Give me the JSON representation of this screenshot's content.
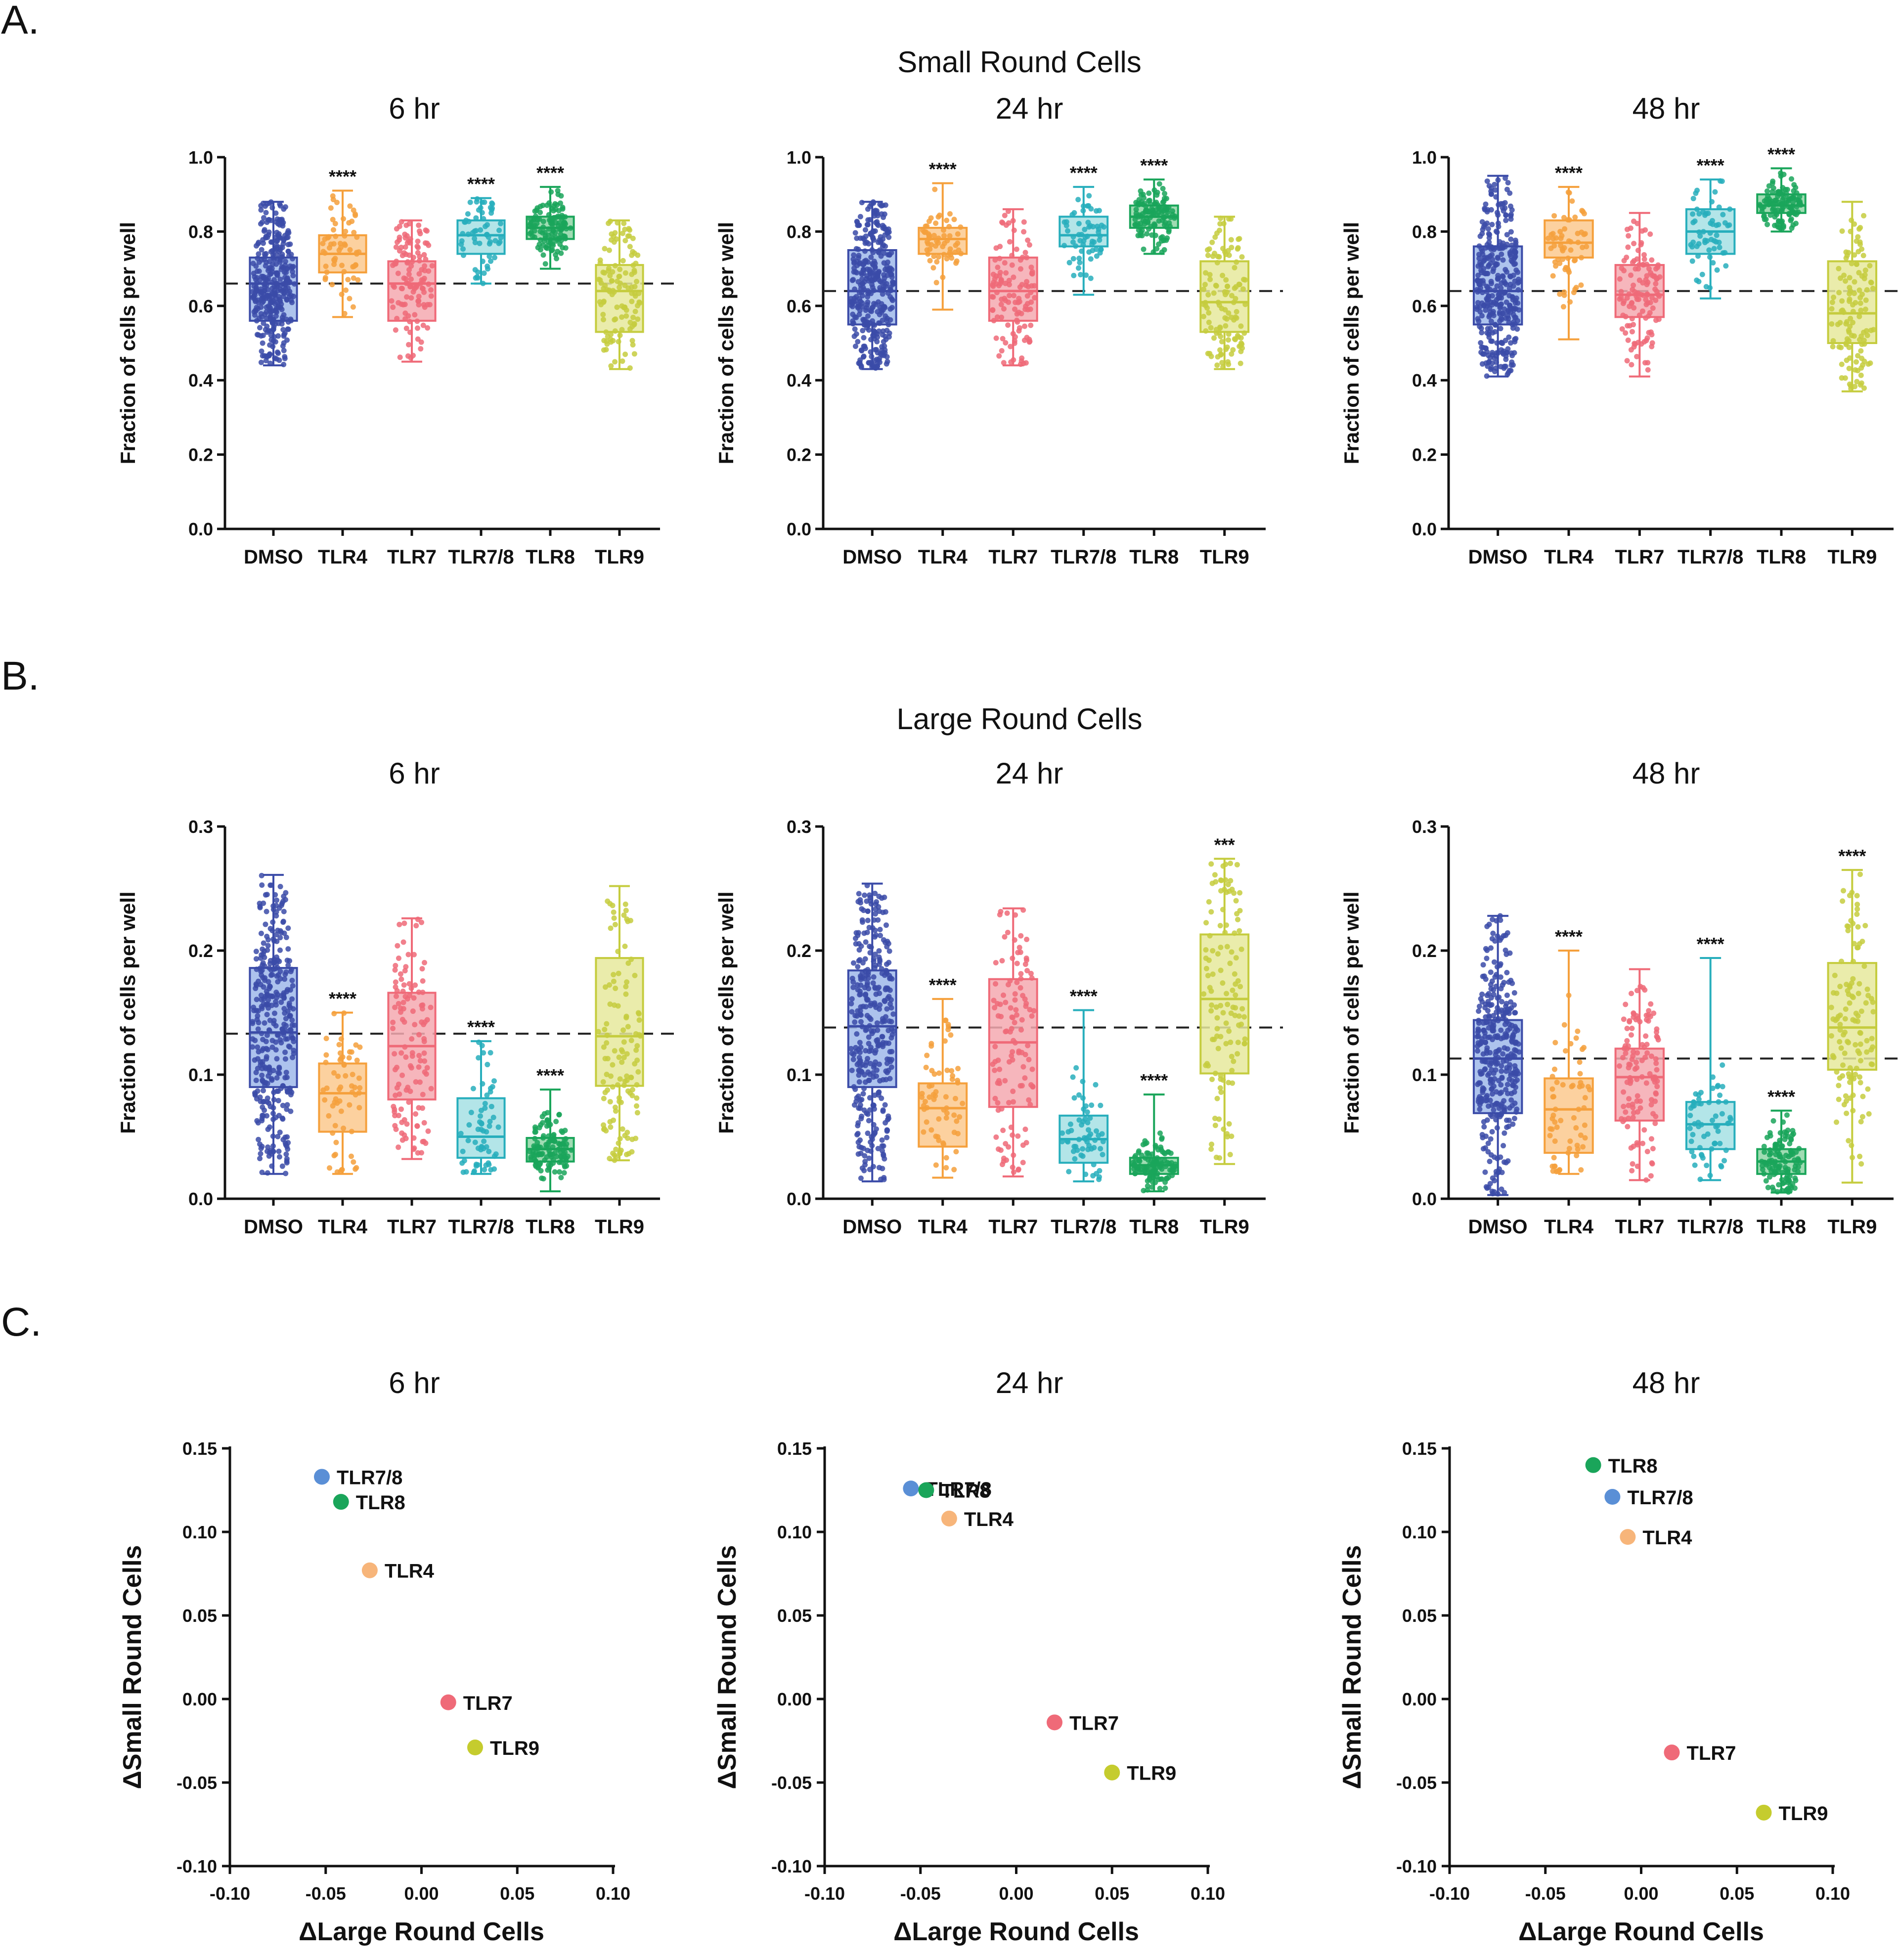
{
  "panels": [
    {
      "letter": "A.",
      "row_title": "Small Round Cells"
    },
    {
      "letter": "B.",
      "row_title": "Large Round Cells"
    },
    {
      "letter": "C.",
      "row_title": ""
    }
  ],
  "colors": {
    "DMSO": "#3b4ba8",
    "TLR4": "#f5a03c",
    "TLR7": "#ef6a78",
    "TLR7/8": "#27aebc",
    "TLR8": "#1aa55a",
    "TLR9": "#c5cc3e",
    "DMSO_fill": "#9fb8ea",
    "TLR4_fill": "#fbc98e",
    "TLR7_fill": "#f5a9b0",
    "TLR7/8_fill": "#a6e1e4",
    "TLR8_fill": "#8fd6a6",
    "TLR9_fill": "#e6e99c",
    "scatter_TLR7/8": "#5a8fd6",
    "scatter_TLR8": "#1aa55a",
    "scatter_TLR4": "#f7b57a",
    "scatter_TLR7": "#ef6a78",
    "scatter_TLR9": "#c5cc2e"
  },
  "chart_data": [
    {
      "type": "box",
      "panel": "A",
      "title": "6 hr",
      "ylabel": "Fraction of cells per well",
      "ylim": [
        0,
        1.0
      ],
      "yticks": [
        "0.0",
        "0.2",
        "0.4",
        "0.6",
        "0.8",
        "1.0"
      ],
      "categories": [
        "DMSO",
        "TLR4",
        "TLR7",
        "TLR7/8",
        "TLR8",
        "TLR9"
      ],
      "reference_line": 0.66,
      "boxes": [
        {
          "min": 0.44,
          "q1": 0.56,
          "median": 0.66,
          "q3": 0.73,
          "max": 0.88,
          "n": 350,
          "sig": ""
        },
        {
          "min": 0.57,
          "q1": 0.69,
          "median": 0.74,
          "q3": 0.79,
          "max": 0.91,
          "n": 60,
          "sig": "****"
        },
        {
          "min": 0.45,
          "q1": 0.56,
          "median": 0.66,
          "q3": 0.72,
          "max": 0.83,
          "n": 120,
          "sig": ""
        },
        {
          "min": 0.66,
          "q1": 0.74,
          "median": 0.79,
          "q3": 0.83,
          "max": 0.89,
          "n": 60,
          "sig": "****"
        },
        {
          "min": 0.7,
          "q1": 0.78,
          "median": 0.81,
          "q3": 0.84,
          "max": 0.92,
          "n": 120,
          "sig": "****"
        },
        {
          "min": 0.43,
          "q1": 0.53,
          "median": 0.64,
          "q3": 0.71,
          "max": 0.83,
          "n": 120,
          "sig": ""
        }
      ]
    },
    {
      "type": "box",
      "panel": "A",
      "title": "24 hr",
      "ylabel": "Fraction of cells per well",
      "ylim": [
        0,
        1.0
      ],
      "yticks": [
        "0.0",
        "0.2",
        "0.4",
        "0.6",
        "0.8",
        "1.0"
      ],
      "categories": [
        "DMSO",
        "TLR4",
        "TLR7",
        "TLR7/8",
        "TLR8",
        "TLR9"
      ],
      "reference_line": 0.64,
      "boxes": [
        {
          "min": 0.43,
          "q1": 0.55,
          "median": 0.64,
          "q3": 0.75,
          "max": 0.88,
          "n": 350,
          "sig": ""
        },
        {
          "min": 0.59,
          "q1": 0.74,
          "median": 0.78,
          "q3": 0.81,
          "max": 0.93,
          "n": 60,
          "sig": "****"
        },
        {
          "min": 0.44,
          "q1": 0.56,
          "median": 0.64,
          "q3": 0.73,
          "max": 0.86,
          "n": 120,
          "sig": ""
        },
        {
          "min": 0.63,
          "q1": 0.76,
          "median": 0.79,
          "q3": 0.84,
          "max": 0.92,
          "n": 60,
          "sig": "****"
        },
        {
          "min": 0.74,
          "q1": 0.81,
          "median": 0.84,
          "q3": 0.87,
          "max": 0.94,
          "n": 120,
          "sig": "****"
        },
        {
          "min": 0.43,
          "q1": 0.53,
          "median": 0.61,
          "q3": 0.72,
          "max": 0.84,
          "n": 120,
          "sig": ""
        }
      ]
    },
    {
      "type": "box",
      "panel": "A",
      "title": "48 hr",
      "ylabel": "Fraction of cells per well",
      "ylim": [
        0,
        1.0
      ],
      "yticks": [
        "0.0",
        "0.2",
        "0.4",
        "0.6",
        "0.8",
        "1.0"
      ],
      "categories": [
        "DMSO",
        "TLR4",
        "TLR7",
        "TLR7/8",
        "TLR8",
        "TLR9"
      ],
      "reference_line": 0.64,
      "boxes": [
        {
          "min": 0.41,
          "q1": 0.55,
          "median": 0.64,
          "q3": 0.76,
          "max": 0.95,
          "n": 350,
          "sig": ""
        },
        {
          "min": 0.51,
          "q1": 0.73,
          "median": 0.77,
          "q3": 0.83,
          "max": 0.92,
          "n": 60,
          "sig": "****"
        },
        {
          "min": 0.41,
          "q1": 0.57,
          "median": 0.63,
          "q3": 0.71,
          "max": 0.85,
          "n": 120,
          "sig": ""
        },
        {
          "min": 0.62,
          "q1": 0.74,
          "median": 0.8,
          "q3": 0.86,
          "max": 0.94,
          "n": 60,
          "sig": "****"
        },
        {
          "min": 0.8,
          "q1": 0.85,
          "median": 0.87,
          "q3": 0.9,
          "max": 0.97,
          "n": 120,
          "sig": "****"
        },
        {
          "min": 0.37,
          "q1": 0.5,
          "median": 0.58,
          "q3": 0.72,
          "max": 0.88,
          "n": 120,
          "sig": ""
        }
      ]
    },
    {
      "type": "box",
      "panel": "B",
      "title": "6 hr",
      "ylabel": "Fraction of cells per well",
      "ylim": [
        0,
        0.3
      ],
      "yticks": [
        "0.0",
        "0.1",
        "0.2",
        "0.3"
      ],
      "categories": [
        "DMSO",
        "TLR4",
        "TLR7",
        "TLR7/8",
        "TLR8",
        "TLR9"
      ],
      "reference_line": 0.133,
      "boxes": [
        {
          "min": 0.02,
          "q1": 0.09,
          "median": 0.134,
          "q3": 0.186,
          "max": 0.261,
          "n": 350,
          "sig": ""
        },
        {
          "min": 0.02,
          "q1": 0.054,
          "median": 0.085,
          "q3": 0.109,
          "max": 0.15,
          "n": 60,
          "sig": "****"
        },
        {
          "min": 0.032,
          "q1": 0.08,
          "median": 0.123,
          "q3": 0.166,
          "max": 0.226,
          "n": 120,
          "sig": ""
        },
        {
          "min": 0.02,
          "q1": 0.033,
          "median": 0.05,
          "q3": 0.081,
          "max": 0.127,
          "n": 60,
          "sig": "****"
        },
        {
          "min": 0.006,
          "q1": 0.03,
          "median": 0.04,
          "q3": 0.049,
          "max": 0.088,
          "n": 120,
          "sig": "****"
        },
        {
          "min": 0.031,
          "q1": 0.091,
          "median": 0.131,
          "q3": 0.194,
          "max": 0.252,
          "n": 120,
          "sig": ""
        }
      ]
    },
    {
      "type": "box",
      "panel": "B",
      "title": "24 hr",
      "ylabel": "Fraction of cells per well",
      "ylim": [
        0,
        0.3
      ],
      "yticks": [
        "0.0",
        "0.1",
        "0.2",
        "0.3"
      ],
      "categories": [
        "DMSO",
        "TLR4",
        "TLR7",
        "TLR7/8",
        "TLR8",
        "TLR9"
      ],
      "reference_line": 0.138,
      "boxes": [
        {
          "min": 0.014,
          "q1": 0.09,
          "median": 0.139,
          "q3": 0.184,
          "max": 0.254,
          "n": 350,
          "sig": ""
        },
        {
          "min": 0.017,
          "q1": 0.042,
          "median": 0.073,
          "q3": 0.093,
          "max": 0.161,
          "n": 60,
          "sig": "****"
        },
        {
          "min": 0.018,
          "q1": 0.074,
          "median": 0.126,
          "q3": 0.177,
          "max": 0.234,
          "n": 120,
          "sig": ""
        },
        {
          "min": 0.014,
          "q1": 0.029,
          "median": 0.048,
          "q3": 0.067,
          "max": 0.152,
          "n": 60,
          "sig": "****"
        },
        {
          "min": 0.006,
          "q1": 0.02,
          "median": 0.027,
          "q3": 0.033,
          "max": 0.084,
          "n": 120,
          "sig": "****"
        },
        {
          "min": 0.028,
          "q1": 0.101,
          "median": 0.161,
          "q3": 0.213,
          "max": 0.274,
          "n": 120,
          "sig": "***"
        }
      ]
    },
    {
      "type": "box",
      "panel": "B",
      "title": "48 hr",
      "ylabel": "Fraction of cells per well",
      "ylim": [
        0,
        0.3
      ],
      "yticks": [
        "0.0",
        "0.1",
        "0.2",
        "0.3"
      ],
      "categories": [
        "DMSO",
        "TLR4",
        "TLR7",
        "TLR7/8",
        "TLR8",
        "TLR9"
      ],
      "reference_line": 0.113,
      "boxes": [
        {
          "min": 0.003,
          "q1": 0.069,
          "median": 0.113,
          "q3": 0.144,
          "max": 0.228,
          "n": 350,
          "sig": ""
        },
        {
          "min": 0.02,
          "q1": 0.037,
          "median": 0.072,
          "q3": 0.097,
          "max": 0.2,
          "n": 60,
          "sig": "****"
        },
        {
          "min": 0.015,
          "q1": 0.063,
          "median": 0.098,
          "q3": 0.121,
          "max": 0.185,
          "n": 120,
          "sig": ""
        },
        {
          "min": 0.015,
          "q1": 0.04,
          "median": 0.06,
          "q3": 0.078,
          "max": 0.194,
          "n": 60,
          "sig": "****"
        },
        {
          "min": 0.005,
          "q1": 0.02,
          "median": 0.03,
          "q3": 0.04,
          "max": 0.071,
          "n": 120,
          "sig": "****"
        },
        {
          "min": 0.013,
          "q1": 0.104,
          "median": 0.138,
          "q3": 0.19,
          "max": 0.265,
          "n": 120,
          "sig": "****"
        }
      ]
    },
    {
      "type": "scatter",
      "panel": "C",
      "title": "6 hr",
      "xlabel": "ΔLarge Round Cells",
      "ylabel": "ΔSmall Round Cells",
      "xlim": [
        -0.1,
        0.1
      ],
      "ylim": [
        -0.1,
        0.15
      ],
      "xticks": [
        "-0.10",
        "-0.05",
        "0.00",
        "0.05",
        "0.10"
      ],
      "yticks": [
        "-0.10",
        "-0.05",
        "0.00",
        "0.05",
        "0.10",
        "0.15"
      ],
      "points": [
        {
          "label": "TLR7/8",
          "x": -0.052,
          "y": 0.133
        },
        {
          "label": "TLR8",
          "x": -0.042,
          "y": 0.118
        },
        {
          "label": "TLR4",
          "x": -0.027,
          "y": 0.077
        },
        {
          "label": "TLR7",
          "x": 0.014,
          "y": -0.002
        },
        {
          "label": "TLR9",
          "x": 0.028,
          "y": -0.029
        }
      ]
    },
    {
      "type": "scatter",
      "panel": "C",
      "title": "24 hr",
      "xlabel": "ΔLarge Round Cells",
      "ylabel": "ΔSmall Round Cells",
      "xlim": [
        -0.1,
        0.1
      ],
      "ylim": [
        -0.1,
        0.15
      ],
      "xticks": [
        "-0.10",
        "-0.05",
        "0.00",
        "0.05",
        "0.10"
      ],
      "yticks": [
        "-0.10",
        "-0.05",
        "0.00",
        "0.05",
        "0.10",
        "0.15"
      ],
      "points": [
        {
          "label": "TLR7/8",
          "x": -0.055,
          "y": 0.126
        },
        {
          "label": "TLR8",
          "x": -0.047,
          "y": 0.125
        },
        {
          "label": "TLR4",
          "x": -0.035,
          "y": 0.108
        },
        {
          "label": "TLR7",
          "x": 0.02,
          "y": -0.014
        },
        {
          "label": "TLR9",
          "x": 0.05,
          "y": -0.044
        }
      ]
    },
    {
      "type": "scatter",
      "panel": "C",
      "title": "48 hr",
      "xlabel": "ΔLarge Round Cells",
      "ylabel": "ΔSmall Round Cells",
      "xlim": [
        -0.1,
        0.1
      ],
      "ylim": [
        -0.1,
        0.15
      ],
      "xticks": [
        "-0.10",
        "-0.05",
        "0.00",
        "0.05",
        "0.10"
      ],
      "yticks": [
        "-0.10",
        "-0.05",
        "0.00",
        "0.05",
        "0.10",
        "0.15"
      ],
      "points": [
        {
          "label": "TLR8",
          "x": -0.025,
          "y": 0.14
        },
        {
          "label": "TLR7/8",
          "x": -0.015,
          "y": 0.121
        },
        {
          "label": "TLR4",
          "x": -0.007,
          "y": 0.097
        },
        {
          "label": "TLR7",
          "x": 0.016,
          "y": -0.032
        },
        {
          "label": "TLR9",
          "x": 0.064,
          "y": -0.068
        }
      ]
    }
  ]
}
